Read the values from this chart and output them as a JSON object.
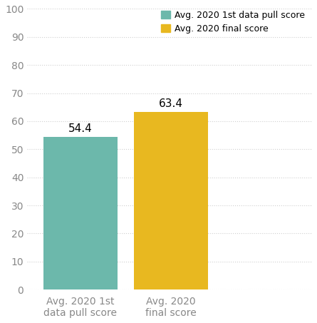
{
  "categories": [
    "Avg. 2020 1st\ndata pull score",
    "Avg. 2020\nfinal score"
  ],
  "values": [
    54.4,
    63.4
  ],
  "bar_colors": [
    "#6cb8ab",
    "#e8b820"
  ],
  "legend_labels": [
    "Avg. 2020 1st data pull score",
    "Avg. 2020 final score"
  ],
  "legend_colors": [
    "#6cb8ab",
    "#e8b820"
  ],
  "ylim": [
    0,
    100
  ],
  "yticks": [
    0,
    10,
    20,
    30,
    40,
    50,
    60,
    70,
    80,
    90,
    100
  ],
  "grid_color": "#d0d0d0",
  "background_color": "#ffffff",
  "label_fontsize": 10,
  "tick_fontsize": 10,
  "annotation_fontsize": 11,
  "bar_width": 0.28,
  "bar_positions": [
    0.18,
    0.52
  ]
}
